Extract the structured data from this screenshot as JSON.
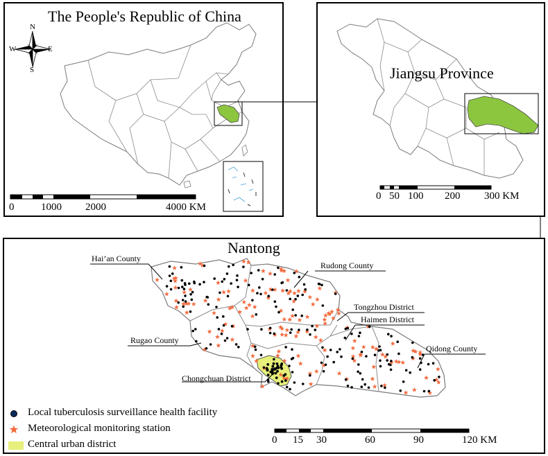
{
  "china_panel": {
    "title": "The People's Republic of China",
    "compass": {
      "n": "N",
      "s": "S",
      "e": "E",
      "w": "W"
    },
    "scale": {
      "ticks": [
        "0",
        "1000",
        "2000",
        "4000 KM"
      ]
    }
  },
  "jiangsu_panel": {
    "title": "Jiangsu Province",
    "scale": {
      "ticks": [
        "0",
        "50",
        "100",
        "200",
        "300 KM"
      ]
    }
  },
  "nantong_panel": {
    "title": "Nantong",
    "labels": {
      "haian": "Hai’an County",
      "rudong": "Rudong County",
      "tongzhou": "Tongzhou District",
      "haimen": "Haimen District",
      "rugao": "Rugao County",
      "qidong": "Qidong County",
      "chongchuan": "Chongchuan District"
    },
    "scale": {
      "ticks": [
        "0",
        "15",
        "30",
        "60",
        "90",
        "120 KM"
      ]
    }
  },
  "legend": {
    "facility": "Local tuberculosis surveillance health facility",
    "station": "Meteorological monitoring station",
    "urban": "Central urban district"
  },
  "colors": {
    "highlight_green": "#8cc63f",
    "station_orange": "#f26a3d",
    "facility_dot": "#000000",
    "urban_fill": "#e6f07a",
    "outline": "#7a7a7a"
  }
}
